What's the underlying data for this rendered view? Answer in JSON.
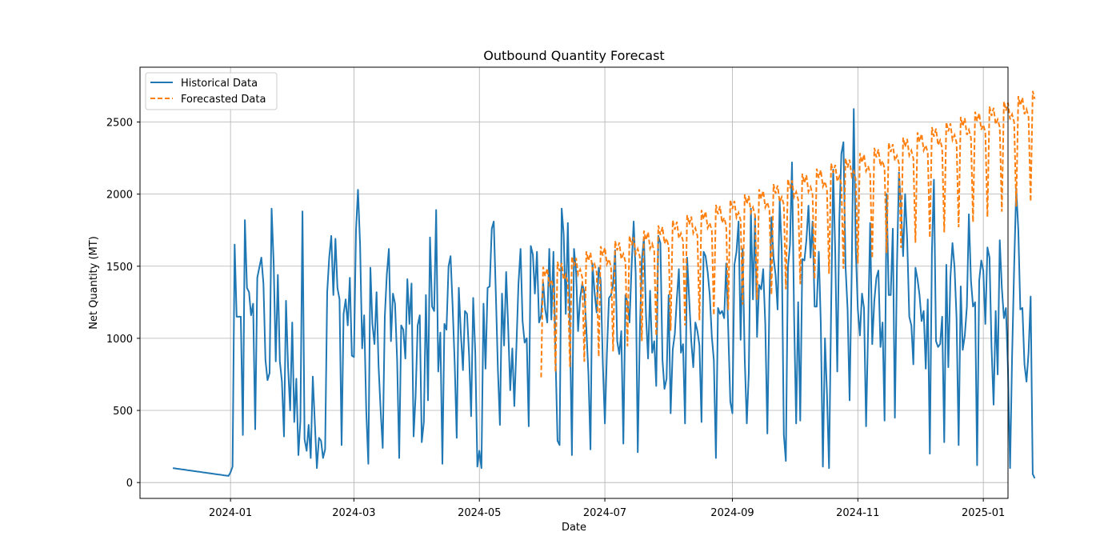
{
  "chart_data": {
    "type": "line",
    "title": "Outbound Quantity Forecast",
    "xlabel": "Date",
    "ylabel": "Net Quantity (MT)",
    "xlim": [
      "2023-11-18",
      "2025-01-13"
    ],
    "ylim": [
      -110,
      2880
    ],
    "x_ticks": [
      "2024-01",
      "2024-03",
      "2024-05",
      "2024-07",
      "2024-09",
      "2024-11",
      "2025-01"
    ],
    "y_ticks": [
      0,
      500,
      1000,
      1500,
      2000,
      2500
    ],
    "grid": true,
    "legend_position": "upper-left",
    "series": [
      {
        "name": "Historical Data",
        "color": "#1f77b4",
        "style": "solid",
        "start_date": "2023-12-04",
        "values": [
          100,
          98,
          96,
          94,
          92,
          90,
          88,
          86,
          84,
          82,
          80,
          78,
          76,
          74,
          72,
          70,
          68,
          66,
          64,
          62,
          60,
          58,
          56,
          54,
          52,
          50,
          48,
          46,
          70,
          110,
          1650,
          1150,
          1150,
          1150,
          330,
          1820,
          1350,
          1320,
          1160,
          1240,
          370,
          1420,
          1490,
          1560,
          1380,
          850,
          710,
          760,
          1900,
          1520,
          840,
          1440,
          840,
          700,
          320,
          1260,
          800,
          500,
          1110,
          420,
          720,
          190,
          430,
          1880,
          300,
          220,
          400,
          170,
          735,
          420,
          100,
          310,
          290,
          170,
          230,
          1320,
          1560,
          1710,
          1300,
          1690,
          1350,
          1270,
          260,
          1170,
          1270,
          1090,
          1420,
          880,
          870,
          1750,
          2030,
          1650,
          930,
          1160,
          500,
          130,
          1490,
          1100,
          960,
          1320,
          810,
          500,
          240,
          1150,
          1440,
          1620,
          980,
          1310,
          1240,
          850,
          170,
          1090,
          1060,
          860,
          1410,
          1100,
          1380,
          320,
          600,
          1090,
          1160,
          280,
          420,
          1300,
          570,
          1700,
          1220,
          1190,
          1890,
          770,
          1040,
          130,
          1100,
          1060,
          1500,
          1570,
          1220,
          820,
          310,
          1350,
          1030,
          780,
          1190,
          1170,
          880,
          460,
          1280,
          900,
          110,
          220,
          100,
          1240,
          790,
          1350,
          1360,
          1760,
          1810,
          1310,
          780,
          400,
          1310,
          950,
          1460,
          1080,
          640,
          930,
          530,
          940,
          1380,
          1620,
          1120,
          970,
          1000,
          390,
          1640,
          1580,
          1310,
          1600,
          1110,
          1160,
          1390,
          1200,
          1110,
          1620,
          1130,
          1600,
          880,
          290,
          260,
          1900,
          1720,
          1170,
          1800,
          1090,
          190,
          1620,
          1460,
          1050,
          1280,
          1380,
          1320,
          1070,
          760,
          230,
          1520,
          1320,
          1180,
          1490,
          1400,
          830,
          410,
          890,
          1280,
          1300,
          1380,
          1610,
          980,
          890,
          1050,
          270,
          1300,
          1250,
          1110,
          1500,
          1810,
          1450,
          210,
          1050,
          1540,
          1700,
          1160,
          860,
          1330,
          900,
          980,
          670,
          1710,
          1660,
          850,
          650,
          720,
          1300,
          480,
          920,
          1030,
          1280,
          1480,
          900,
          960,
          410,
          1560,
          1270,
          980,
          800,
          1110,
          1050,
          950,
          420,
          1600,
          1570,
          1460,
          1300,
          1010,
          850,
          170,
          1210,
          1170,
          1190,
          1140,
          1520,
          1060,
          560,
          480,
          1510,
          1600,
          1810,
          990,
          1620,
          860,
          410,
          760,
          1900,
          1270,
          1850,
          1010,
          1370,
          1340,
          1480,
          1100,
          340,
          1270,
          1840,
          1560,
          1440,
          1200,
          1950,
          1610,
          330,
          150,
          1490,
          1650,
          2220,
          1160,
          410,
          1250,
          430,
          1550,
          1540,
          1680,
          1920,
          1560,
          1810,
          1220,
          1220,
          1600,
          1100,
          110,
          1000,
          620,
          100,
          1200,
          2170,
          1610,
          770,
          1830,
          2280,
          2360,
          1500,
          1200,
          570,
          1450,
          2590,
          1620,
          1200,
          1020,
          1310,
          1210,
          390,
          1080,
          1800,
          960,
          1260,
          1420,
          1470,
          940,
          1110,
          430,
          2000,
          1300,
          1300,
          1760,
          450,
          1500,
          2150,
          1900,
          1570,
          2000,
          1680,
          1150,
          1090,
          820,
          1490,
          1410,
          1300,
          1120,
          1190,
          790,
          1270,
          200,
          1600,
          2100,
          980,
          940,
          960,
          1150,
          280,
          1510,
          800,
          1420,
          1660,
          1490,
          1140,
          260,
          1360,
          920,
          1020,
          1220,
          1860,
          1400,
          1220,
          1250,
          120,
          1400,
          1540,
          1470,
          1100,
          1630,
          1560,
          940,
          540,
          1190,
          750,
          1680,
          1350,
          1140,
          1210,
          780,
          100,
          870,
          1500,
          2040,
          1750,
          1200,
          1210,
          820,
          700,
          900,
          1290,
          60,
          30
        ]
      },
      {
        "name": "Forecasted Data",
        "color": "#ff7f0e",
        "style": "dashed",
        "start_date": "2024-05-31",
        "base_start": 1190,
        "base_end": 2420,
        "weekly_pattern": [
          -460,
          300,
          230,
          280,
          160,
          190,
          130
        ],
        "last_value": 2660
      }
    ]
  }
}
